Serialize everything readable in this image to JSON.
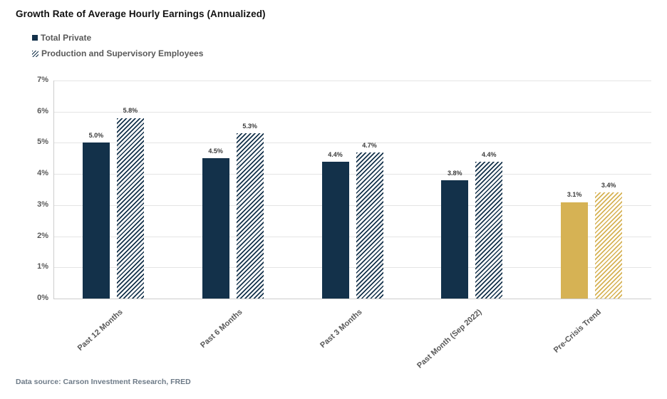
{
  "title": "Growth Rate of Average Hourly Earnings (Annualized)",
  "legend": {
    "items": [
      {
        "label": "Total Private",
        "swatch": "solid",
        "color_key": "navy"
      },
      {
        "label": "Production and Supervisory Employees",
        "swatch": "hatched",
        "color_key": "navy"
      }
    ]
  },
  "footer": {
    "text": "Data source: Carson Investment Research, FRED"
  },
  "chart_data": {
    "type": "bar",
    "title": "Growth Rate of Average Hourly Earnings (Annualized)",
    "categories": [
      "Past 12 Months",
      "Past 6 Months",
      "Past 3 Months",
      "Past Month (Sep 2022)",
      "Pre-Crisis Trend"
    ],
    "series": [
      {
        "name": "Total Private",
        "pattern": "solid",
        "values": [
          5.0,
          4.5,
          4.4,
          3.8,
          3.1
        ],
        "labels": [
          "5.0%",
          "4.5%",
          "4.4%",
          "3.8%",
          "3.1%"
        ]
      },
      {
        "name": "Production and Supervisory Employees",
        "pattern": "hatched",
        "values": [
          5.8,
          5.3,
          4.7,
          4.4,
          3.4
        ],
        "labels": [
          "5.8%",
          "5.3%",
          "4.7%",
          "4.4%",
          "3.4%"
        ]
      }
    ],
    "y_ticks": [
      "0%",
      "1%",
      "2%",
      "3%",
      "4%",
      "5%",
      "6%",
      "7%"
    ],
    "ylim": [
      0,
      7
    ],
    "grid": true,
    "legend_position": "top-left",
    "xlabel": "",
    "ylabel": "",
    "colors": {
      "navy": "#13314A",
      "gold": "#D6B254"
    },
    "category_color_keys": [
      "navy",
      "navy",
      "navy",
      "navy",
      "gold"
    ]
  }
}
